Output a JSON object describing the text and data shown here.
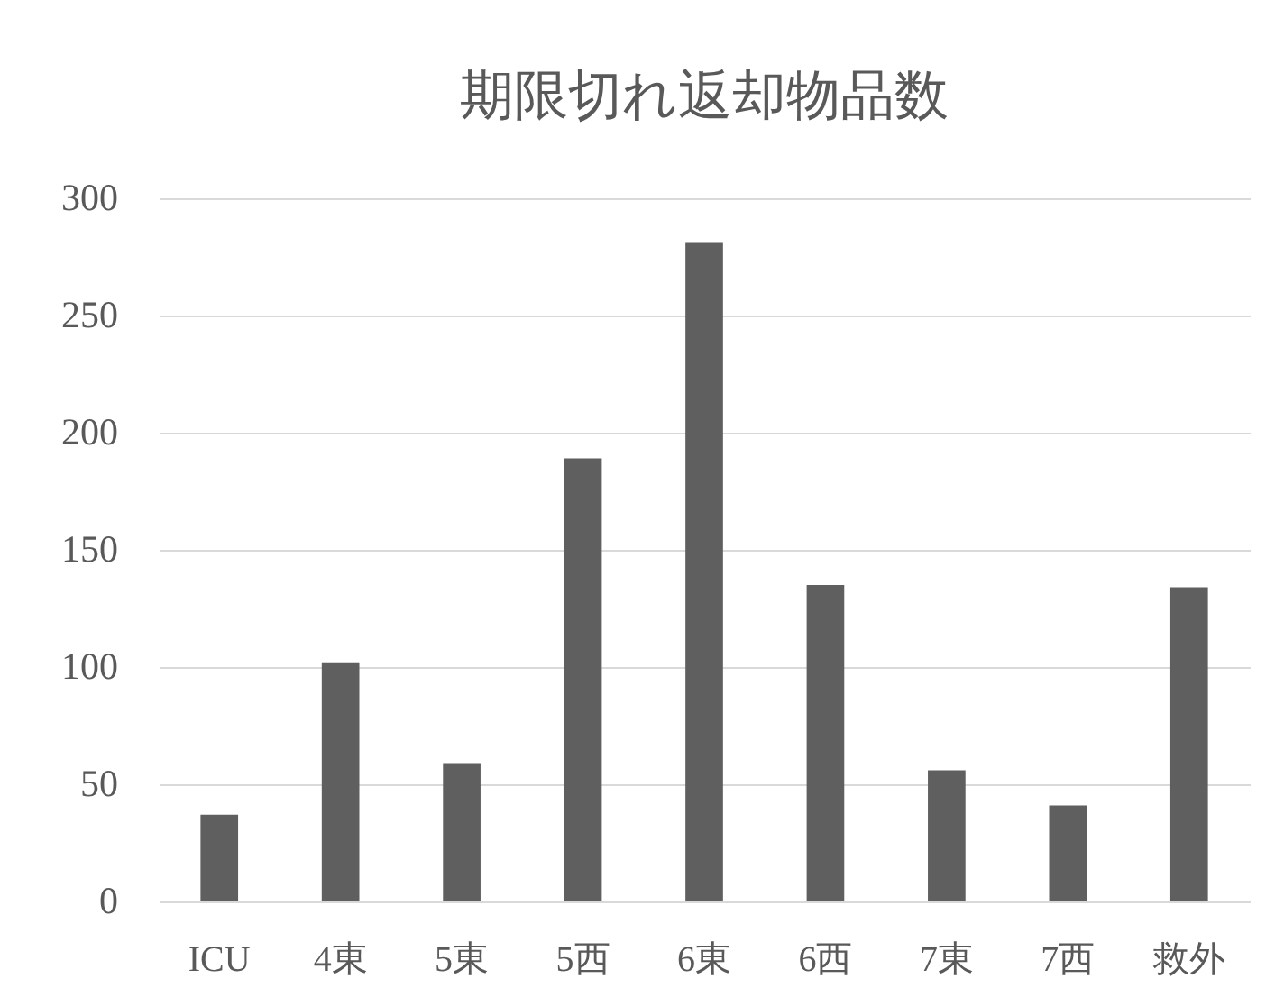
{
  "chart_data": {
    "type": "bar",
    "title": "期限切れ返却物品数",
    "categories": [
      "ICU",
      "4東",
      "5東",
      "5西",
      "6東",
      "6西",
      "7東",
      "7西",
      "救外"
    ],
    "values": [
      37,
      102,
      59,
      189,
      281,
      135,
      56,
      41,
      134
    ],
    "color": "#5f5f5f",
    "ylim": [
      0,
      300
    ],
    "yticks": [
      0,
      50,
      100,
      150,
      200,
      250,
      300
    ],
    "grid": "y"
  }
}
